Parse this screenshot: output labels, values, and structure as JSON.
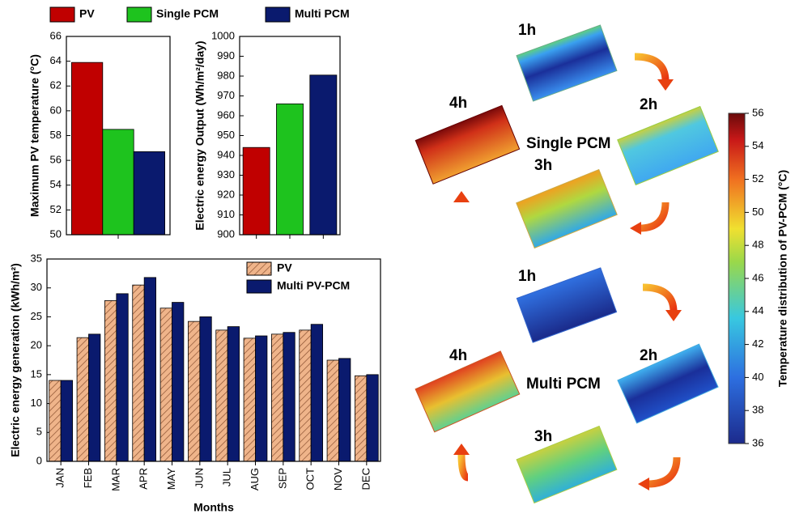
{
  "chart_data": [
    {
      "type": "bar",
      "y_label": "Maximum PV temperature (°C)",
      "categories": [
        null
      ],
      "series": [
        {
          "name": "PV",
          "color": "#c00000",
          "values": [
            63.9
          ]
        },
        {
          "name": "Single PCM",
          "color": "#1ec31e",
          "values": [
            58.5
          ]
        },
        {
          "name": "Multi PCM",
          "color": "#0a1a6e",
          "values": [
            56.7
          ]
        }
      ],
      "ylim": [
        50,
        66
      ],
      "yticks": [
        50,
        52,
        54,
        56,
        58,
        60,
        62,
        64,
        66
      ],
      "legend": "top"
    },
    {
      "type": "bar",
      "y_label": "Electric energy Output (Wh/m²/day)",
      "categories": [
        null,
        null,
        null
      ],
      "values": [
        944,
        966,
        980.5
      ],
      "colors": [
        "#c00000",
        "#1ec31e",
        "#0a1a6e"
      ],
      "ylim": [
        900,
        1000
      ],
      "yticks": [
        900,
        910,
        920,
        930,
        940,
        950,
        960,
        970,
        980,
        990,
        1000
      ]
    },
    {
      "type": "bar",
      "x_label": "Months",
      "y_label": "Electric energy generation (kWh/m²)",
      "categories": [
        "JAN",
        "FEB",
        "MAR",
        "APR",
        "MAY",
        "JUN",
        "JUL",
        "AUG",
        "SEP",
        "OCT",
        "NOV",
        "DEC"
      ],
      "series": [
        {
          "name": "PV",
          "color": "#efb48a",
          "hatch": true,
          "values": [
            14,
            21.4,
            27.8,
            30.5,
            26.5,
            24.2,
            22.7,
            21.3,
            22,
            22.7,
            17.5,
            14.8
          ]
        },
        {
          "name": "Multi PV-PCM",
          "color": "#0a1a6e",
          "values": [
            14,
            22,
            29,
            31.8,
            27.5,
            25,
            23.3,
            21.7,
            22.3,
            23.7,
            17.8,
            15
          ]
        }
      ],
      "ylim": [
        0,
        35
      ],
      "yticks": [
        0,
        5,
        10,
        15,
        20,
        25,
        30,
        35
      ],
      "legend": "upper right"
    }
  ],
  "diagram": {
    "single": {
      "label": "Single PCM",
      "steps": [
        "1h",
        "2h",
        "3h",
        "4h"
      ]
    },
    "multi": {
      "label": "Multi PCM",
      "steps": [
        "1h",
        "2h",
        "3h",
        "4h"
      ]
    },
    "colorbar": {
      "label": "Temperature  distribution of PV-PCM (°C)",
      "lim": [
        36,
        56
      ],
      "ticks": [
        36,
        38,
        40,
        42,
        44,
        46,
        48,
        50,
        52,
        54,
        56
      ]
    }
  }
}
